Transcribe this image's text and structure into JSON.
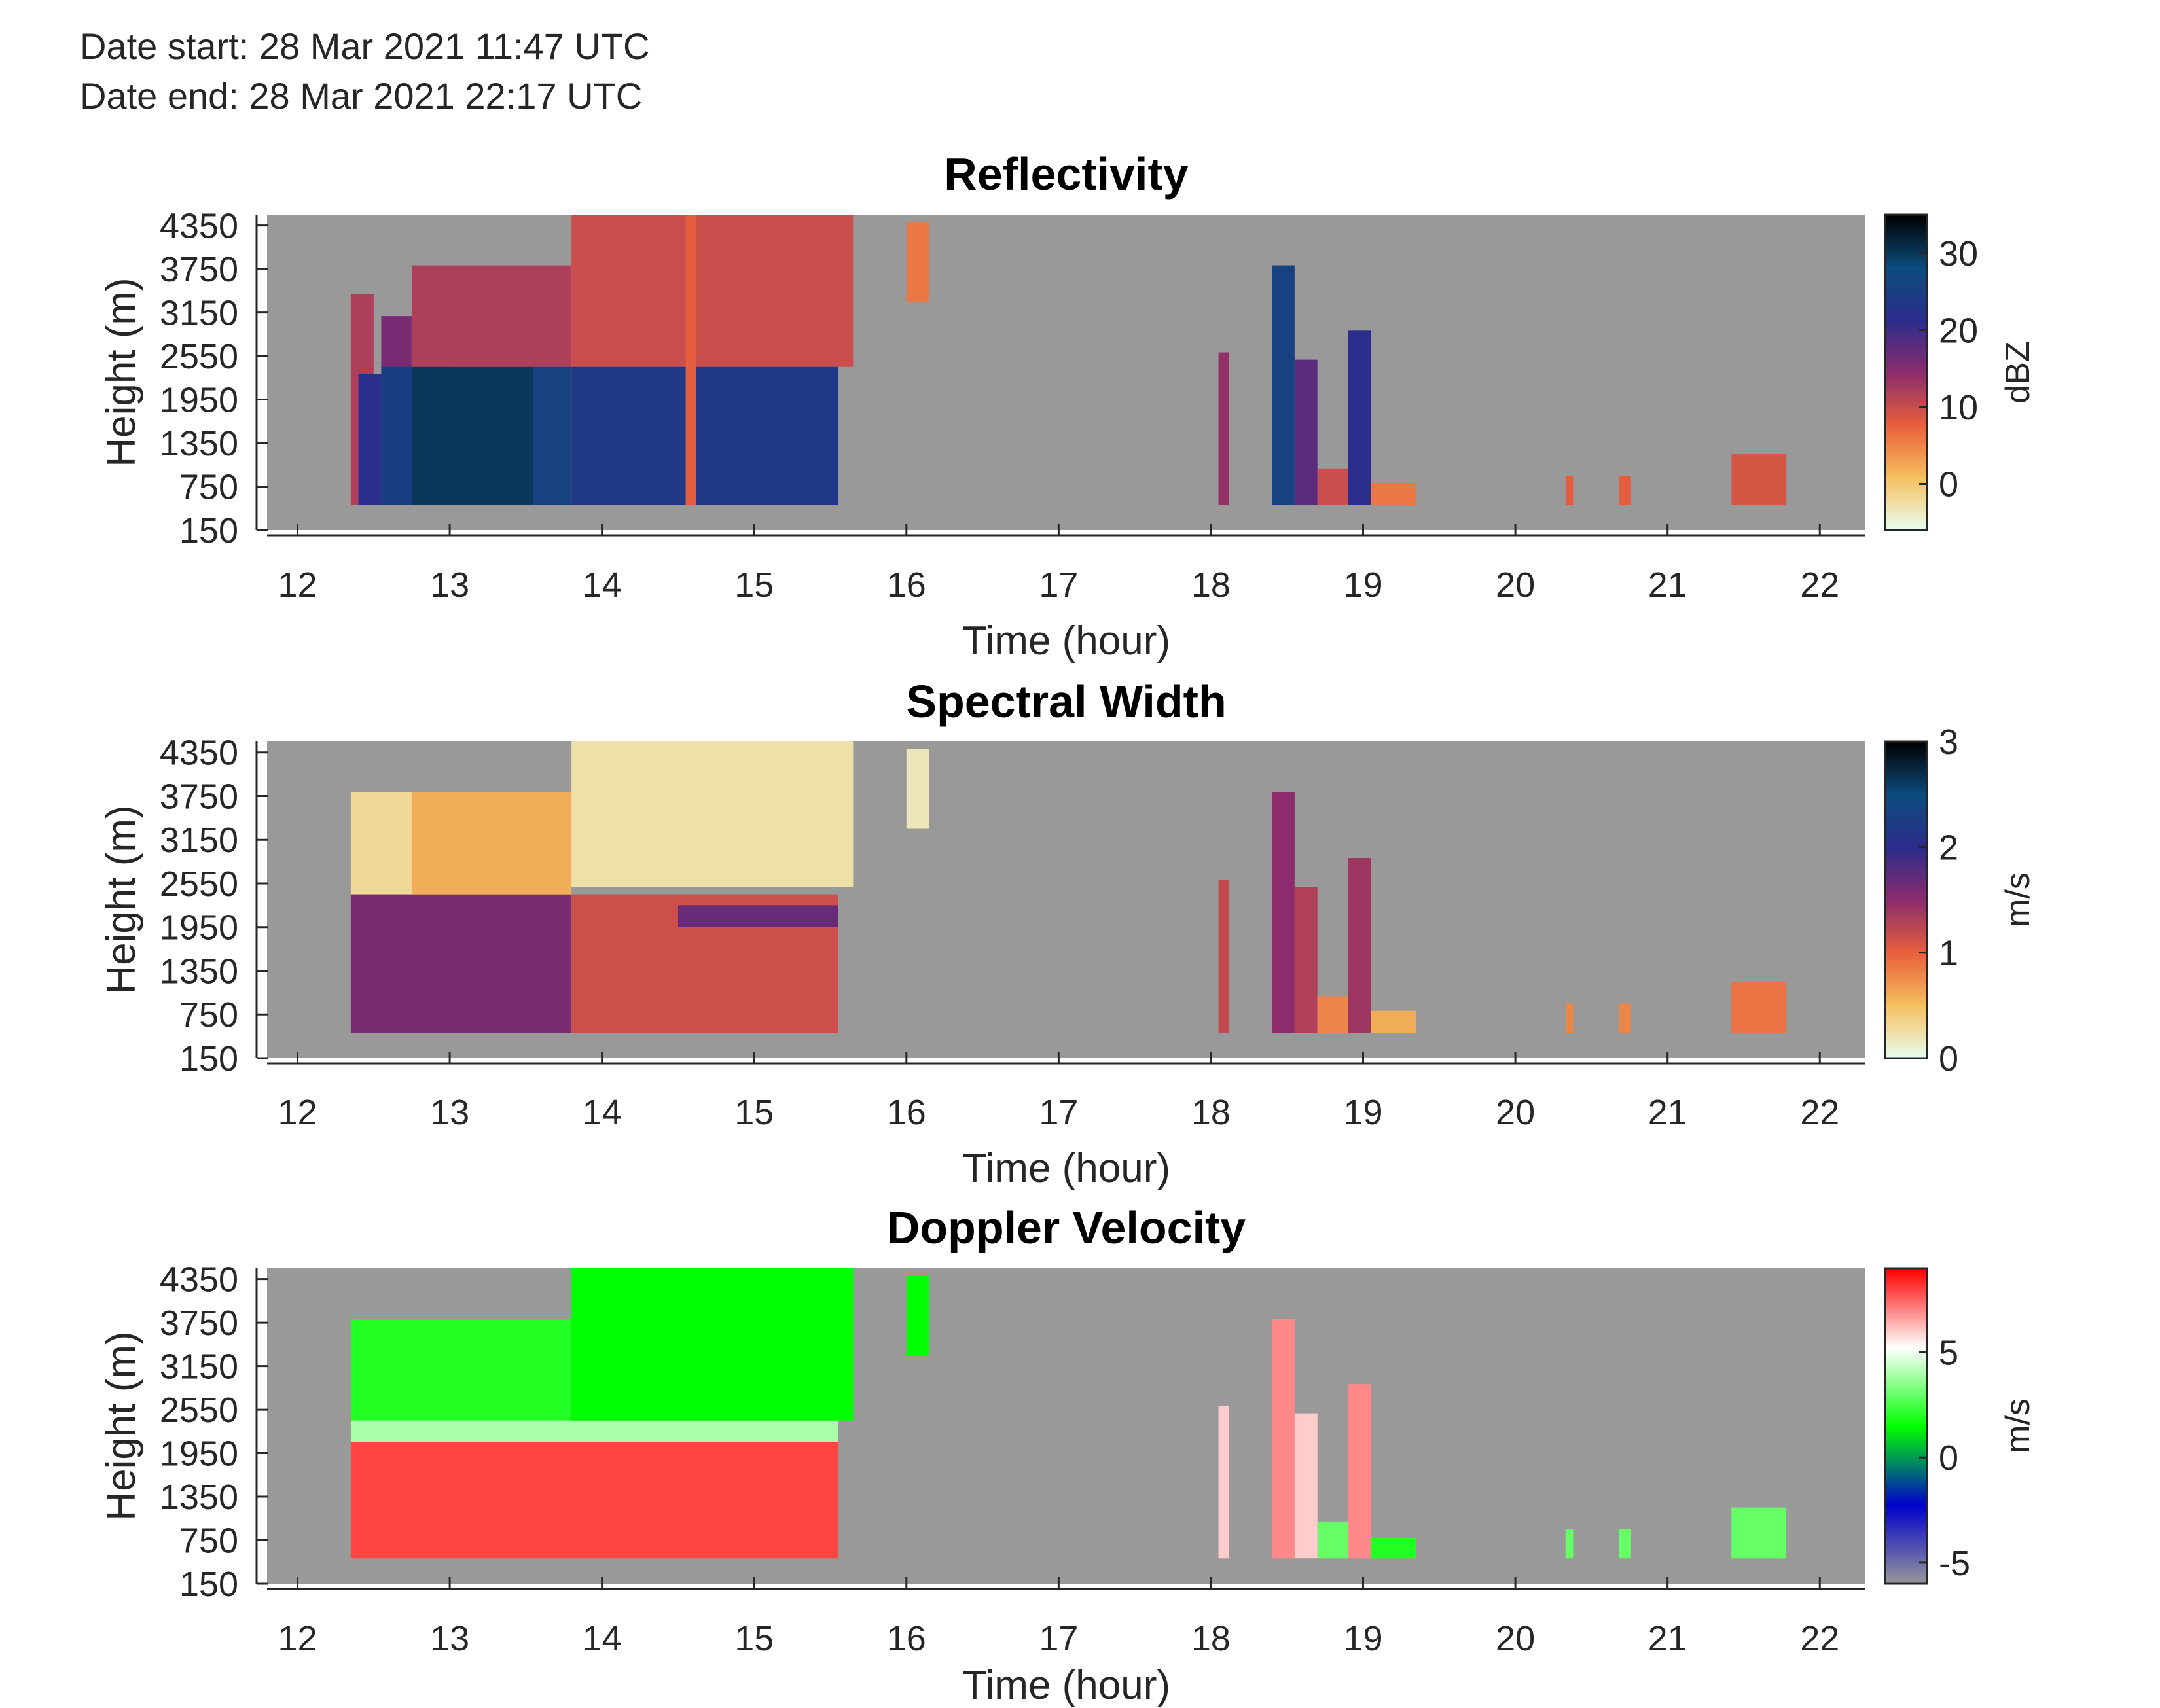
{
  "header": {
    "date_start": "Date start: 28 Mar 2021 11:47 UTC",
    "date_end": "Date end:  28 Mar 2021 22:17 UTC"
  },
  "colors": {
    "background": "#ffffff",
    "plot_background": "#999999",
    "axis_text": "#262626"
  },
  "chart_data": [
    {
      "type": "heatmap",
      "title": "Reflectivity",
      "xlabel": "Time (hour)",
      "ylabel": "Height (m)",
      "xlim": [
        11.8,
        22.3
      ],
      "ylim": [
        150,
        4500
      ],
      "xticks": [
        "12",
        "13",
        "14",
        "15",
        "16",
        "17",
        "18",
        "19",
        "20",
        "21",
        "22"
      ],
      "yticks": [
        "150",
        "750",
        "1350",
        "1950",
        "2550",
        "3150",
        "3750",
        "4350"
      ],
      "colorbar": {
        "label": "dBZ",
        "range": [
          -6,
          35
        ],
        "ticks": [
          "0",
          "10",
          "20",
          "30"
        ],
        "colors": [
          "#e6fff2",
          "#f5c060",
          "#e8603c",
          "#8c2c6c",
          "#2c2c8c",
          "#0c4c7c",
          "#000000"
        ]
      },
      "cells": [
        {
          "x": [
            12.35,
            12.5
          ],
          "y": [
            500,
            3400
          ],
          "value": 12
        },
        {
          "x": [
            12.4,
            12.55
          ],
          "y": [
            500,
            2300
          ],
          "value": 22
        },
        {
          "x": [
            12.55,
            12.75
          ],
          "y": [
            500,
            3100
          ],
          "value": 16
        },
        {
          "x": [
            12.55,
            13.0
          ],
          "y": [
            500,
            2400
          ],
          "value": 25
        },
        {
          "x": [
            12.75,
            13.55
          ],
          "y": [
            500,
            2400
          ],
          "value": 30
        },
        {
          "x": [
            12.75,
            13.8
          ],
          "y": [
            2400,
            3800
          ],
          "value": 12
        },
        {
          "x": [
            13.55,
            13.8
          ],
          "y": [
            500,
            2400
          ],
          "value": 26
        },
        {
          "x": [
            13.8,
            15.65
          ],
          "y": [
            2400,
            4500
          ],
          "value": 10
        },
        {
          "x": [
            13.8,
            15.55
          ],
          "y": [
            500,
            2400
          ],
          "value": 24
        },
        {
          "x": [
            14.55,
            14.62
          ],
          "y": [
            500,
            4500
          ],
          "value": 8
        },
        {
          "x": [
            16.0,
            16.15
          ],
          "y": [
            3300,
            4400
          ],
          "value": 6
        },
        {
          "x": [
            18.05,
            18.12
          ],
          "y": [
            500,
            2600
          ],
          "value": 14
        },
        {
          "x": [
            18.4,
            18.55
          ],
          "y": [
            500,
            3800
          ],
          "value": 26
        },
        {
          "x": [
            18.55,
            18.7
          ],
          "y": [
            500,
            2500
          ],
          "value": 18
        },
        {
          "x": [
            18.7,
            18.9
          ],
          "y": [
            500,
            1000
          ],
          "value": 10
        },
        {
          "x": [
            18.9,
            19.05
          ],
          "y": [
            500,
            2900
          ],
          "value": 22
        },
        {
          "x": [
            19.05,
            19.35
          ],
          "y": [
            500,
            800
          ],
          "value": 6
        },
        {
          "x": [
            20.33,
            20.38
          ],
          "y": [
            500,
            900
          ],
          "value": 8
        },
        {
          "x": [
            20.68,
            20.76
          ],
          "y": [
            500,
            900
          ],
          "value": 8
        },
        {
          "x": [
            21.42,
            21.78
          ],
          "y": [
            500,
            1200
          ],
          "value": 9
        }
      ]
    },
    {
      "type": "heatmap",
      "title": "Spectral Width",
      "xlabel": "Time (hour)",
      "ylabel": "Height (m)",
      "xlim": [
        11.8,
        22.3
      ],
      "ylim": [
        150,
        4500
      ],
      "xticks": [
        "12",
        "13",
        "14",
        "15",
        "16",
        "17",
        "18",
        "19",
        "20",
        "21",
        "22"
      ],
      "yticks": [
        "150",
        "750",
        "1350",
        "1950",
        "2550",
        "3150",
        "3750",
        "4350"
      ],
      "colorbar": {
        "label": "m/s",
        "range": [
          0,
          3
        ],
        "ticks": [
          "0",
          "1",
          "2",
          "3"
        ],
        "colors": [
          "#e6fff2",
          "#f5c060",
          "#e8603c",
          "#8c2c6c",
          "#2c2c8c",
          "#0c4c7c",
          "#000000"
        ]
      },
      "cells": [
        {
          "x": [
            12.35,
            12.75
          ],
          "y": [
            2400,
            3800
          ],
          "value": 0.3
        },
        {
          "x": [
            12.35,
            13.8
          ],
          "y": [
            500,
            2400
          ],
          "value": 1.6
        },
        {
          "x": [
            12.75,
            13.8
          ],
          "y": [
            2400,
            3800
          ],
          "value": 0.6
        },
        {
          "x": [
            13.8,
            15.65
          ],
          "y": [
            2500,
            4500
          ],
          "value": 0.25
        },
        {
          "x": [
            13.8,
            15.55
          ],
          "y": [
            500,
            2400
          ],
          "value": 1.15
        },
        {
          "x": [
            14.5,
            15.55
          ],
          "y": [
            1950,
            2250
          ],
          "value": 1.7
        },
        {
          "x": [
            16.0,
            16.15
          ],
          "y": [
            3300,
            4400
          ],
          "value": 0.2
        },
        {
          "x": [
            18.05,
            18.12
          ],
          "y": [
            500,
            2600
          ],
          "value": 1.2
        },
        {
          "x": [
            18.4,
            18.55
          ],
          "y": [
            500,
            3800
          ],
          "value": 1.5
        },
        {
          "x": [
            18.55,
            18.7
          ],
          "y": [
            500,
            2500
          ],
          "value": 1.3
        },
        {
          "x": [
            18.7,
            18.9
          ],
          "y": [
            500,
            1000
          ],
          "value": 0.8
        },
        {
          "x": [
            18.9,
            19.05
          ],
          "y": [
            500,
            2900
          ],
          "value": 1.4
        },
        {
          "x": [
            19.05,
            19.35
          ],
          "y": [
            500,
            800
          ],
          "value": 0.6
        },
        {
          "x": [
            20.33,
            20.38
          ],
          "y": [
            500,
            900
          ],
          "value": 0.8
        },
        {
          "x": [
            20.68,
            20.76
          ],
          "y": [
            500,
            900
          ],
          "value": 0.8
        },
        {
          "x": [
            21.42,
            21.78
          ],
          "y": [
            500,
            1200
          ],
          "value": 0.9
        }
      ]
    },
    {
      "type": "heatmap",
      "title": "Doppler Velocity",
      "xlabel": "Time (hour)",
      "ylabel": "Height (m)",
      "xlim": [
        11.8,
        22.3
      ],
      "ylim": [
        150,
        4500
      ],
      "xticks": [
        "12",
        "13",
        "14",
        "15",
        "16",
        "17",
        "18",
        "19",
        "20",
        "21",
        "22"
      ],
      "yticks": [
        "150",
        "750",
        "1350",
        "1950",
        "2550",
        "3150",
        "3750",
        "4350"
      ],
      "colorbar": {
        "label": "m/s",
        "range": [
          -6,
          9
        ],
        "ticks": [
          "-5",
          "0",
          "5"
        ],
        "colors": [
          "#999999",
          "#0000cc",
          "#00ff00",
          "#ffffff",
          "#ff0000"
        ]
      },
      "cells": [
        {
          "x": [
            12.35,
            13.8
          ],
          "y": [
            2400,
            3800
          ],
          "value": 2
        },
        {
          "x": [
            12.35,
            15.55
          ],
          "y": [
            2100,
            2400
          ],
          "value": 4
        },
        {
          "x": [
            12.35,
            15.55
          ],
          "y": [
            500,
            2100
          ],
          "value": 8
        },
        {
          "x": [
            13.8,
            15.65
          ],
          "y": [
            2400,
            4500
          ],
          "value": 1.5
        },
        {
          "x": [
            16.0,
            16.15
          ],
          "y": [
            3300,
            4400
          ],
          "value": 1.5
        },
        {
          "x": [
            18.05,
            18.12
          ],
          "y": [
            500,
            2600
          ],
          "value": 6
        },
        {
          "x": [
            18.4,
            18.55
          ],
          "y": [
            500,
            3800
          ],
          "value": 7
        },
        {
          "x": [
            18.55,
            18.7
          ],
          "y": [
            500,
            2500
          ],
          "value": 6
        },
        {
          "x": [
            18.7,
            18.9
          ],
          "y": [
            500,
            1000
          ],
          "value": 3
        },
        {
          "x": [
            18.9,
            19.05
          ],
          "y": [
            500,
            2900
          ],
          "value": 7
        },
        {
          "x": [
            19.05,
            19.35
          ],
          "y": [
            500,
            800
          ],
          "value": 2
        },
        {
          "x": [
            20.33,
            20.38
          ],
          "y": [
            500,
            900
          ],
          "value": 3
        },
        {
          "x": [
            20.68,
            20.76
          ],
          "y": [
            500,
            900
          ],
          "value": 3
        },
        {
          "x": [
            21.42,
            21.78
          ],
          "y": [
            500,
            1200
          ],
          "value": 3
        }
      ]
    }
  ]
}
